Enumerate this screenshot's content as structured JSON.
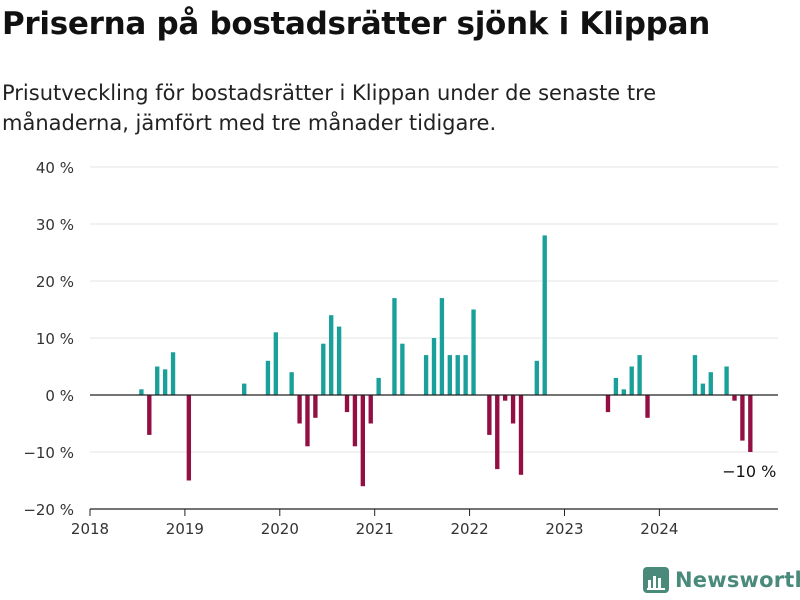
{
  "title": "Priserna på bostadsrätter sjönk i Klippan",
  "subtitle": "Prisutveckling för bostadsrätter i Klippan under de senaste tre månaderna, jämfört med tre månader tidigare.",
  "brand": "Newsworthy",
  "colors": {
    "positive": "#1aa09a",
    "negative": "#930f43",
    "grid": "#e4e4e4",
    "axis": "#222222",
    "brand": "#4a8a7a"
  },
  "chart_data": {
    "type": "bar",
    "x_unit": "month",
    "xlim": [
      "2018-01",
      "2025-04"
    ],
    "ylim": [
      -20,
      40
    ],
    "y_ticks": [
      -20,
      -10,
      0,
      10,
      20,
      30,
      40
    ],
    "y_tick_labels": [
      "−20 %",
      "−10 %",
      "0 %",
      "10 %",
      "20 %",
      "30 %",
      "40 %"
    ],
    "x_ticks": [
      "2018-01",
      "2019-01",
      "2020-01",
      "2021-01",
      "2022-01",
      "2023-01",
      "2024-01"
    ],
    "x_tick_labels": [
      "2018",
      "2019",
      "2020",
      "2021",
      "2022",
      "2023",
      "2024"
    ],
    "grid": "horizontal",
    "annotation": {
      "month": "2024-12",
      "text": "−10 %"
    },
    "points": [
      {
        "x": "2018-07",
        "y": 1
      },
      {
        "x": "2018-08",
        "y": -7
      },
      {
        "x": "2018-09",
        "y": 5
      },
      {
        "x": "2018-10",
        "y": 4.5
      },
      {
        "x": "2018-11",
        "y": 7.5
      },
      {
        "x": "2019-01",
        "y": -15
      },
      {
        "x": "2019-08",
        "y": 2
      },
      {
        "x": "2019-11",
        "y": 6
      },
      {
        "x": "2019-12",
        "y": 11
      },
      {
        "x": "2020-02",
        "y": 4
      },
      {
        "x": "2020-03",
        "y": -5
      },
      {
        "x": "2020-04",
        "y": -9
      },
      {
        "x": "2020-05",
        "y": -4
      },
      {
        "x": "2020-06",
        "y": 9
      },
      {
        "x": "2020-07",
        "y": 14
      },
      {
        "x": "2020-08",
        "y": 12
      },
      {
        "x": "2020-09",
        "y": -3
      },
      {
        "x": "2020-10",
        "y": -9
      },
      {
        "x": "2020-11",
        "y": -16
      },
      {
        "x": "2020-12",
        "y": -5
      },
      {
        "x": "2021-01",
        "y": 3
      },
      {
        "x": "2021-03",
        "y": 17
      },
      {
        "x": "2021-04",
        "y": 9
      },
      {
        "x": "2021-07",
        "y": 7
      },
      {
        "x": "2021-08",
        "y": 10
      },
      {
        "x": "2021-09",
        "y": 17
      },
      {
        "x": "2021-10",
        "y": 7
      },
      {
        "x": "2021-11",
        "y": 7
      },
      {
        "x": "2021-12",
        "y": 7
      },
      {
        "x": "2022-01",
        "y": 15
      },
      {
        "x": "2022-03",
        "y": -7
      },
      {
        "x": "2022-04",
        "y": -13
      },
      {
        "x": "2022-05",
        "y": -1
      },
      {
        "x": "2022-06",
        "y": -5
      },
      {
        "x": "2022-07",
        "y": -14
      },
      {
        "x": "2022-09",
        "y": 6
      },
      {
        "x": "2022-10",
        "y": 28
      },
      {
        "x": "2023-06",
        "y": -3
      },
      {
        "x": "2023-07",
        "y": 3
      },
      {
        "x": "2023-08",
        "y": 1
      },
      {
        "x": "2023-09",
        "y": 5
      },
      {
        "x": "2023-10",
        "y": 7
      },
      {
        "x": "2023-11",
        "y": -4
      },
      {
        "x": "2024-05",
        "y": 7
      },
      {
        "x": "2024-06",
        "y": 2
      },
      {
        "x": "2024-07",
        "y": 4
      },
      {
        "x": "2024-09",
        "y": 5
      },
      {
        "x": "2024-10",
        "y": -1
      },
      {
        "x": "2024-11",
        "y": -8
      },
      {
        "x": "2024-12",
        "y": -10
      }
    ]
  }
}
